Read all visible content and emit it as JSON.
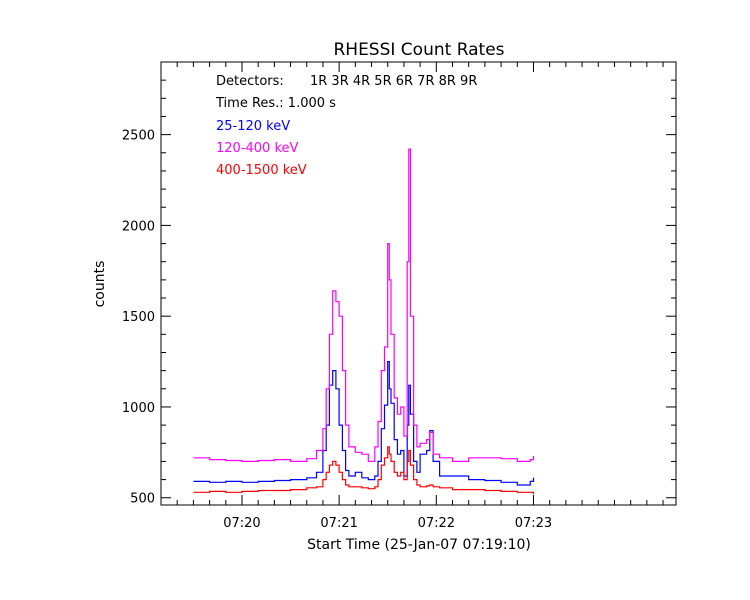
{
  "chart_data": {
    "type": "line",
    "title": "RHESSI Count Rates",
    "xlabel": "Start Time (25-Jan-07 07:19:10)",
    "ylabel": "counts",
    "x_unit": "time (s after 07:19:10)",
    "xlim": [
      0,
      318
    ],
    "ylim": [
      460,
      2900
    ],
    "x_ticks": [
      {
        "t": 50,
        "label": "07:20"
      },
      {
        "t": 110,
        "label": "07:21"
      },
      {
        "t": 170,
        "label": "07:22"
      },
      {
        "t": 230,
        "label": "07:23"
      }
    ],
    "y_ticks": [
      500,
      1000,
      1500,
      2000,
      2500
    ],
    "annotations": {
      "detectors_label": "Detectors:",
      "detectors_value": "1R 3R 4R 5R 6R 7R 8R 9R",
      "time_res": "Time Res.: 1.000 s"
    },
    "grid": false,
    "legend_position": "top-left",
    "series": [
      {
        "name": "25-120 keV",
        "color": "#0000ff",
        "points": [
          [
            20,
            590
          ],
          [
            30,
            585
          ],
          [
            40,
            590
          ],
          [
            50,
            585
          ],
          [
            60,
            590
          ],
          [
            70,
            595
          ],
          [
            80,
            600
          ],
          [
            90,
            610
          ],
          [
            96,
            640
          ],
          [
            100,
            760
          ],
          [
            102,
            900
          ],
          [
            104,
            1120
          ],
          [
            106,
            1200
          ],
          [
            108,
            1100
          ],
          [
            110,
            900
          ],
          [
            112,
            760
          ],
          [
            114,
            650
          ],
          [
            116,
            620
          ],
          [
            120,
            640
          ],
          [
            124,
            610
          ],
          [
            128,
            600
          ],
          [
            132,
            620
          ],
          [
            134,
            700
          ],
          [
            136,
            880
          ],
          [
            138,
            1010
          ],
          [
            140,
            1250
          ],
          [
            141,
            1100
          ],
          [
            142,
            1020
          ],
          [
            144,
            820
          ],
          [
            146,
            740
          ],
          [
            148,
            760
          ],
          [
            150,
            620
          ],
          [
            152,
            900
          ],
          [
            153,
            1120
          ],
          [
            154,
            960
          ],
          [
            156,
            700
          ],
          [
            158,
            640
          ],
          [
            160,
            740
          ],
          [
            164,
            760
          ],
          [
            166,
            870
          ],
          [
            168,
            700
          ],
          [
            172,
            620
          ],
          [
            180,
            620
          ],
          [
            190,
            600
          ],
          [
            200,
            595
          ],
          [
            210,
            585
          ],
          [
            220,
            570
          ],
          [
            228,
            590
          ],
          [
            230,
            610
          ]
        ]
      },
      {
        "name": "120-400 keV",
        "color": "#ff00ff",
        "points": [
          [
            20,
            720
          ],
          [
            30,
            710
          ],
          [
            40,
            705
          ],
          [
            50,
            700
          ],
          [
            60,
            705
          ],
          [
            70,
            710
          ],
          [
            80,
            700
          ],
          [
            90,
            715
          ],
          [
            96,
            760
          ],
          [
            100,
            880
          ],
          [
            102,
            1100
          ],
          [
            104,
            1400
          ],
          [
            106,
            1640
          ],
          [
            108,
            1580
          ],
          [
            110,
            1500
          ],
          [
            112,
            1200
          ],
          [
            114,
            900
          ],
          [
            116,
            780
          ],
          [
            120,
            750
          ],
          [
            124,
            740
          ],
          [
            128,
            700
          ],
          [
            132,
            780
          ],
          [
            134,
            920
          ],
          [
            136,
            1200
          ],
          [
            138,
            1330
          ],
          [
            140,
            1900
          ],
          [
            141,
            1700
          ],
          [
            142,
            1400
          ],
          [
            144,
            1050
          ],
          [
            146,
            960
          ],
          [
            148,
            1000
          ],
          [
            150,
            840
          ],
          [
            152,
            1800
          ],
          [
            153,
            2420
          ],
          [
            154,
            1500
          ],
          [
            156,
            900
          ],
          [
            158,
            780
          ],
          [
            160,
            800
          ],
          [
            164,
            820
          ],
          [
            166,
            860
          ],
          [
            168,
            740
          ],
          [
            172,
            720
          ],
          [
            180,
            700
          ],
          [
            190,
            720
          ],
          [
            200,
            720
          ],
          [
            210,
            715
          ],
          [
            220,
            700
          ],
          [
            228,
            710
          ],
          [
            230,
            730
          ]
        ]
      },
      {
        "name": "400-1500 keV",
        "color": "#ff0000",
        "points": [
          [
            20,
            530
          ],
          [
            30,
            535
          ],
          [
            40,
            530
          ],
          [
            50,
            535
          ],
          [
            60,
            540
          ],
          [
            70,
            540
          ],
          [
            80,
            545
          ],
          [
            90,
            555
          ],
          [
            96,
            560
          ],
          [
            100,
            600
          ],
          [
            102,
            640
          ],
          [
            104,
            680
          ],
          [
            106,
            700
          ],
          [
            108,
            680
          ],
          [
            110,
            640
          ],
          [
            112,
            600
          ],
          [
            114,
            570
          ],
          [
            116,
            560
          ],
          [
            120,
            560
          ],
          [
            124,
            555
          ],
          [
            128,
            550
          ],
          [
            132,
            560
          ],
          [
            134,
            600
          ],
          [
            136,
            680
          ],
          [
            138,
            720
          ],
          [
            140,
            780
          ],
          [
            141,
            740
          ],
          [
            142,
            700
          ],
          [
            144,
            640
          ],
          [
            146,
            620
          ],
          [
            148,
            640
          ],
          [
            150,
            600
          ],
          [
            152,
            700
          ],
          [
            153,
            760
          ],
          [
            154,
            680
          ],
          [
            156,
            600
          ],
          [
            158,
            570
          ],
          [
            160,
            560
          ],
          [
            164,
            565
          ],
          [
            166,
            570
          ],
          [
            168,
            560
          ],
          [
            172,
            555
          ],
          [
            180,
            545
          ],
          [
            190,
            545
          ],
          [
            200,
            540
          ],
          [
            210,
            535
          ],
          [
            220,
            530
          ],
          [
            228,
            530
          ],
          [
            230,
            520
          ]
        ]
      }
    ]
  }
}
